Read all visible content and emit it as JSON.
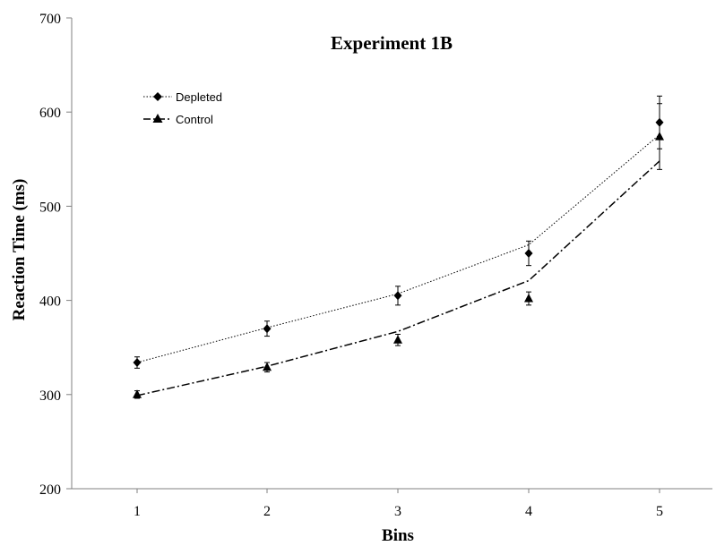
{
  "chart_data": {
    "type": "line",
    "title": "Experiment 1B",
    "xlabel": "Bins",
    "ylabel": "Reaction Time (ms)",
    "categories": [
      "1",
      "2",
      "3",
      "4",
      "5"
    ],
    "ylim": [
      200,
      700
    ],
    "yticks": [
      "200",
      "300",
      "400",
      "500",
      "600",
      "700"
    ],
    "legend_position": "top-left",
    "grid": false,
    "series": [
      {
        "name": "Depleted",
        "marker": "diamond",
        "values": [
          334,
          370,
          405,
          450,
          589
        ],
        "error": [
          6,
          8,
          10,
          13,
          28
        ],
        "trend": [
          334,
          371,
          407,
          459,
          576
        ],
        "trend_style": "dotted",
        "color": "#000000"
      },
      {
        "name": "Control",
        "marker": "triangle",
        "values": [
          300,
          329,
          358,
          402,
          574
        ],
        "error": [
          4,
          5,
          6,
          7,
          35
        ],
        "trend": [
          299,
          330,
          367,
          421,
          548
        ],
        "trend_style": "dash-dot",
        "color": "#000000"
      }
    ]
  }
}
